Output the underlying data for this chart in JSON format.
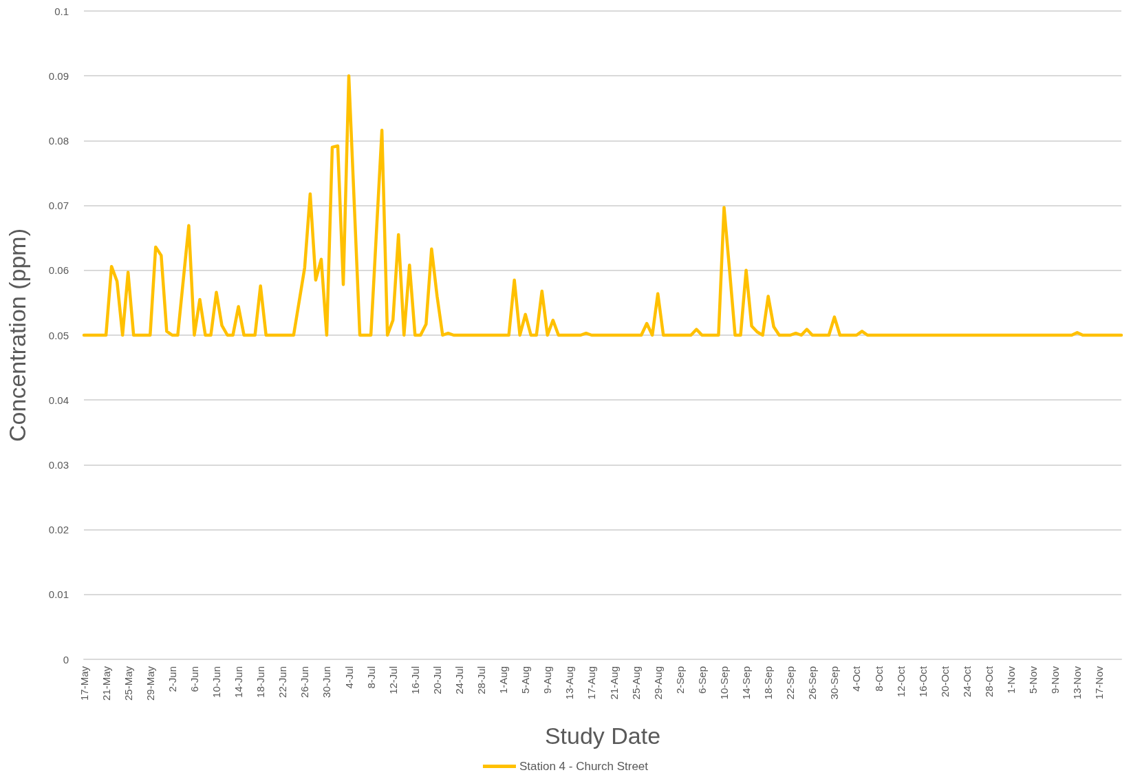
{
  "chart_data": {
    "type": "line",
    "xlabel": "Study Date",
    "ylabel": "Concentration (ppm)",
    "legend": "bottom",
    "grid": "y",
    "marker": "none",
    "line_style": "solid",
    "ylim": [
      0,
      0.1
    ],
    "yticks": [
      0,
      0.01,
      0.02,
      0.03,
      0.04,
      0.05,
      0.06,
      0.07,
      0.08,
      0.09,
      0.1
    ],
    "xlim": [
      "--05-17",
      "--11-21"
    ],
    "xticks": [
      {
        "value": "--05-17",
        "label": "17-May"
      },
      {
        "value": "--05-21",
        "label": "21-May"
      },
      {
        "value": "--05-25",
        "label": "25-May"
      },
      {
        "value": "--05-29",
        "label": "29-May"
      },
      {
        "value": "--06-02",
        "label": "2-Jun"
      },
      {
        "value": "--06-06",
        "label": "6-Jun"
      },
      {
        "value": "--06-10",
        "label": "10-Jun"
      },
      {
        "value": "--06-14",
        "label": "14-Jun"
      },
      {
        "value": "--06-18",
        "label": "18-Jun"
      },
      {
        "value": "--06-22",
        "label": "22-Jun"
      },
      {
        "value": "--06-26",
        "label": "26-Jun"
      },
      {
        "value": "--06-30",
        "label": "30-Jun"
      },
      {
        "value": "--07-04",
        "label": "4-Jul"
      },
      {
        "value": "--07-08",
        "label": "8-Jul"
      },
      {
        "value": "--07-12",
        "label": "12-Jul"
      },
      {
        "value": "--07-16",
        "label": "16-Jul"
      },
      {
        "value": "--07-20",
        "label": "20-Jul"
      },
      {
        "value": "--07-24",
        "label": "24-Jul"
      },
      {
        "value": "--07-28",
        "label": "28-Jul"
      },
      {
        "value": "--08-01",
        "label": "1-Aug"
      },
      {
        "value": "--08-05",
        "label": "5-Aug"
      },
      {
        "value": "--08-09",
        "label": "9-Aug"
      },
      {
        "value": "--08-13",
        "label": "13-Aug"
      },
      {
        "value": "--08-17",
        "label": "17-Aug"
      },
      {
        "value": "--08-21",
        "label": "21-Aug"
      },
      {
        "value": "--08-25",
        "label": "25-Aug"
      },
      {
        "value": "--08-29",
        "label": "29-Aug"
      },
      {
        "value": "--09-02",
        "label": "2-Sep"
      },
      {
        "value": "--09-06",
        "label": "6-Sep"
      },
      {
        "value": "--09-10",
        "label": "10-Sep"
      },
      {
        "value": "--09-14",
        "label": "14-Sep"
      },
      {
        "value": "--09-18",
        "label": "18-Sep"
      },
      {
        "value": "--09-22",
        "label": "22-Sep"
      },
      {
        "value": "--09-26",
        "label": "26-Sep"
      },
      {
        "value": "--09-30",
        "label": "30-Sep"
      },
      {
        "value": "--10-04",
        "label": "4-Oct"
      },
      {
        "value": "--10-08",
        "label": "8-Oct"
      },
      {
        "value": "--10-12",
        "label": "12-Oct"
      },
      {
        "value": "--10-16",
        "label": "16-Oct"
      },
      {
        "value": "--10-20",
        "label": "20-Oct"
      },
      {
        "value": "--10-24",
        "label": "24-Oct"
      },
      {
        "value": "--10-28",
        "label": "28-Oct"
      },
      {
        "value": "--11-01",
        "label": "1-Nov"
      },
      {
        "value": "--11-05",
        "label": "5-Nov"
      },
      {
        "value": "--11-09",
        "label": "9-Nov"
      },
      {
        "value": "--11-13",
        "label": "13-Nov"
      },
      {
        "value": "--11-17",
        "label": "17-Nov"
      }
    ],
    "series": [
      {
        "name": "Station 4 - Church Street",
        "color": "#ffc000",
        "x": [
          "--05-17",
          "--05-21",
          "--05-22",
          "--05-23",
          "--05-24",
          "--05-25",
          "--05-26",
          "--05-29",
          "--05-30",
          "--05-31",
          "--06-01",
          "--06-02",
          "--06-03",
          "--06-05",
          "--06-06",
          "--06-07",
          "--06-08",
          "--06-09",
          "--06-10",
          "--06-11",
          "--06-12",
          "--06-13",
          "--06-14",
          "--06-15",
          "--06-17",
          "--06-18",
          "--06-19",
          "--06-24",
          "--06-26",
          "--06-27",
          "--06-28",
          "--06-29",
          "--06-30",
          "--07-01",
          "--07-02",
          "--07-03",
          "--07-04",
          "--07-05",
          "--07-06",
          "--07-08",
          "--07-10",
          "--07-11",
          "--07-12",
          "--07-13",
          "--07-14",
          "--07-15",
          "--07-16",
          "--07-17",
          "--07-18",
          "--07-19",
          "--07-20",
          "--07-21",
          "--07-22",
          "--07-23",
          "--08-02",
          "--08-03",
          "--08-04",
          "--08-05",
          "--08-06",
          "--08-07",
          "--08-08",
          "--08-09",
          "--08-10",
          "--08-11",
          "--08-15",
          "--08-16",
          "--08-17",
          "--08-26",
          "--08-27",
          "--08-28",
          "--08-29",
          "--08-30",
          "--09-04",
          "--09-05",
          "--09-06",
          "--09-09",
          "--09-10",
          "--09-11",
          "--09-12",
          "--09-13",
          "--09-14",
          "--09-15",
          "--09-16",
          "--09-17",
          "--09-18",
          "--09-19",
          "--09-20",
          "--09-22",
          "--09-23",
          "--09-24",
          "--09-25",
          "--09-26",
          "--09-29",
          "--09-30",
          "--10-01",
          "--10-04",
          "--10-05",
          "--10-06",
          "--11-12",
          "--11-13",
          "--11-14",
          "--11-21"
        ],
        "values": [
          0.05,
          0.05,
          0.0606,
          0.0583,
          0.05,
          0.0597,
          0.05,
          0.05,
          0.0636,
          0.0623,
          0.0506,
          0.05,
          0.05,
          0.0669,
          0.05,
          0.0555,
          0.05,
          0.05,
          0.0566,
          0.0515,
          0.05,
          0.05,
          0.0544,
          0.05,
          0.05,
          0.0576,
          0.05,
          0.05,
          0.0604,
          0.0718,
          0.0585,
          0.0617,
          0.05,
          0.079,
          0.0792,
          0.0578,
          0.09,
          0.07,
          0.05,
          0.05,
          0.0816,
          0.05,
          0.0523,
          0.0655,
          0.05,
          0.0608,
          0.05,
          0.05,
          0.0517,
          0.0633,
          0.056,
          0.05,
          0.0503,
          0.05,
          0.05,
          0.0585,
          0.05,
          0.0532,
          0.05,
          0.05,
          0.0568,
          0.05,
          0.0523,
          0.05,
          0.05,
          0.0503,
          0.05,
          0.05,
          0.0518,
          0.05,
          0.0564,
          0.05,
          0.05,
          0.0509,
          0.05,
          0.05,
          0.0697,
          0.06,
          0.05,
          0.05,
          0.06,
          0.0514,
          0.0505,
          0.05,
          0.056,
          0.0513,
          0.05,
          0.05,
          0.0503,
          0.05,
          0.0509,
          0.05,
          0.05,
          0.0528,
          0.05,
          0.05,
          0.0506,
          0.05,
          0.05,
          0.0504,
          0.05,
          0.05
        ]
      }
    ]
  }
}
